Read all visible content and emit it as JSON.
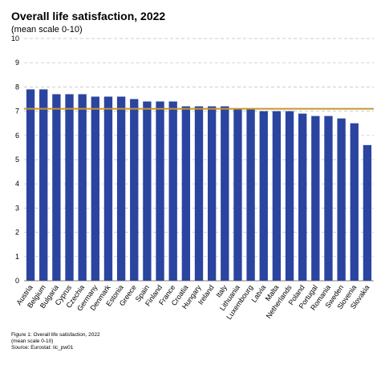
{
  "chart_data": {
    "type": "bar",
    "title": "Overall life satisfaction, 2022",
    "subtitle": "(mean scale 0-10)",
    "xlabel": "",
    "ylabel": "",
    "ylim": [
      0,
      10
    ],
    "yticks": [
      "0",
      "1",
      "2",
      "3",
      "4",
      "5",
      "6",
      "7",
      "8",
      "9",
      "10"
    ],
    "grid": true,
    "categories": [
      "Austria",
      "Belgium",
      "Bulgaria",
      "Cyprus",
      "Czechia",
      "Germany",
      "Denmark",
      "Estonia",
      "Greece",
      "Spain",
      "Finland",
      "France",
      "Croatia",
      "Hungary",
      "Ireland",
      "Italy",
      "Lithuania",
      "Luxembourg",
      "Latvia",
      "Malta",
      "Netherlands",
      "Poland",
      "Portugal",
      "Romania",
      "Sweden",
      "Slovenia",
      "Slovakia"
    ],
    "values": [
      7.9,
      7.9,
      7.7,
      7.7,
      7.7,
      7.6,
      7.6,
      7.6,
      7.5,
      7.4,
      7.4,
      7.4,
      7.2,
      7.2,
      7.2,
      7.2,
      7.1,
      7.1,
      7.0,
      7.0,
      7.0,
      6.9,
      6.8,
      6.8,
      6.7,
      6.5,
      5.6
    ],
    "reference_line": 7.1,
    "colors": {
      "bar": "#2a44a0",
      "reference": "#c8962a",
      "grid": "#bdbdbd"
    }
  },
  "footnote": {
    "line1": "Figure 1: Overall life satisfaction, 2022",
    "line2": "(mean scale 0-10)",
    "line3": "Source: Eurostat: ilc_pw01"
  }
}
